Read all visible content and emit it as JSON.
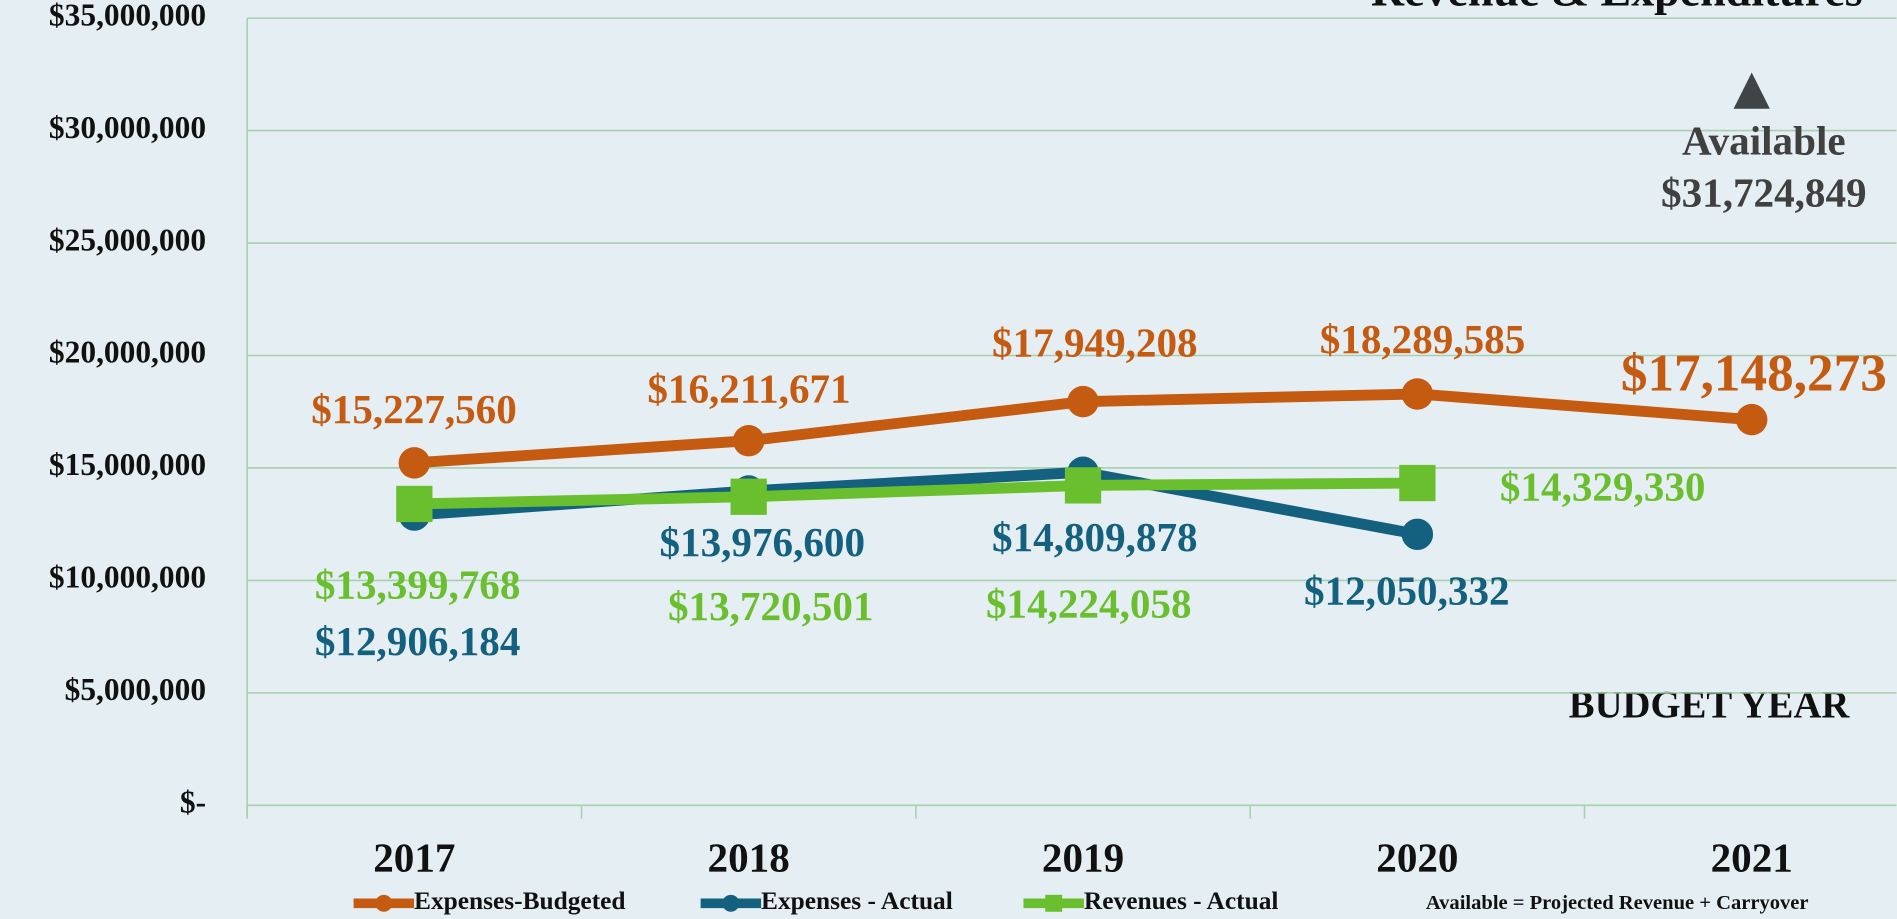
{
  "chart_data": {
    "type": "line",
    "title": "Revenue & Expenditures",
    "categories": [
      "2017",
      "2018",
      "2019",
      "2020",
      "2021"
    ],
    "x_label": "BUDGET YEAR",
    "ylim": [
      0,
      35000000
    ],
    "yticks": [
      {
        "value": 0,
        "label": "$-"
      },
      {
        "value": 5000000,
        "label": "$5,000,000"
      },
      {
        "value": 10000000,
        "label": "$10,000,000"
      },
      {
        "value": 15000000,
        "label": "$15,000,000"
      },
      {
        "value": 20000000,
        "label": "$20,000,000"
      },
      {
        "value": 25000000,
        "label": "$25,000,000"
      },
      {
        "value": 30000000,
        "label": "$30,000,000"
      },
      {
        "value": 35000000,
        "label": "$35,000,000"
      }
    ],
    "grid": true,
    "series": [
      {
        "name": "Expenses-Budgeted",
        "color": "#c55a11",
        "marker": "circle",
        "values": [
          15227560,
          16211671,
          17949208,
          18289585,
          17148273
        ],
        "value_labels": [
          "$15,227,560",
          "$16,211,671",
          "$17,949,208",
          "$18,289,585",
          "$17,148,273"
        ]
      },
      {
        "name": "Expenses - Actual",
        "color": "#14607f",
        "marker": "circle",
        "values": [
          12906184,
          13976600,
          14809878,
          12050332,
          null
        ],
        "value_labels": [
          "$12,906,184",
          "$13,976,600",
          "$14,809,878",
          "$12,050,332",
          null
        ]
      },
      {
        "name": "Revenues - Actual",
        "color": "#6abf2e",
        "marker": "square",
        "values": [
          13399768,
          13720501,
          14224058,
          14329330,
          null
        ],
        "value_labels": [
          "$13,399,768",
          "$13,720,501",
          "$14,224,058",
          "$14,329,330",
          null
        ]
      }
    ],
    "available": {
      "label": "Available",
      "category": "2021",
      "value": 31724849,
      "value_label": "$31,724,849"
    },
    "footnote": "Available = Projected Revenue + Carryover"
  }
}
